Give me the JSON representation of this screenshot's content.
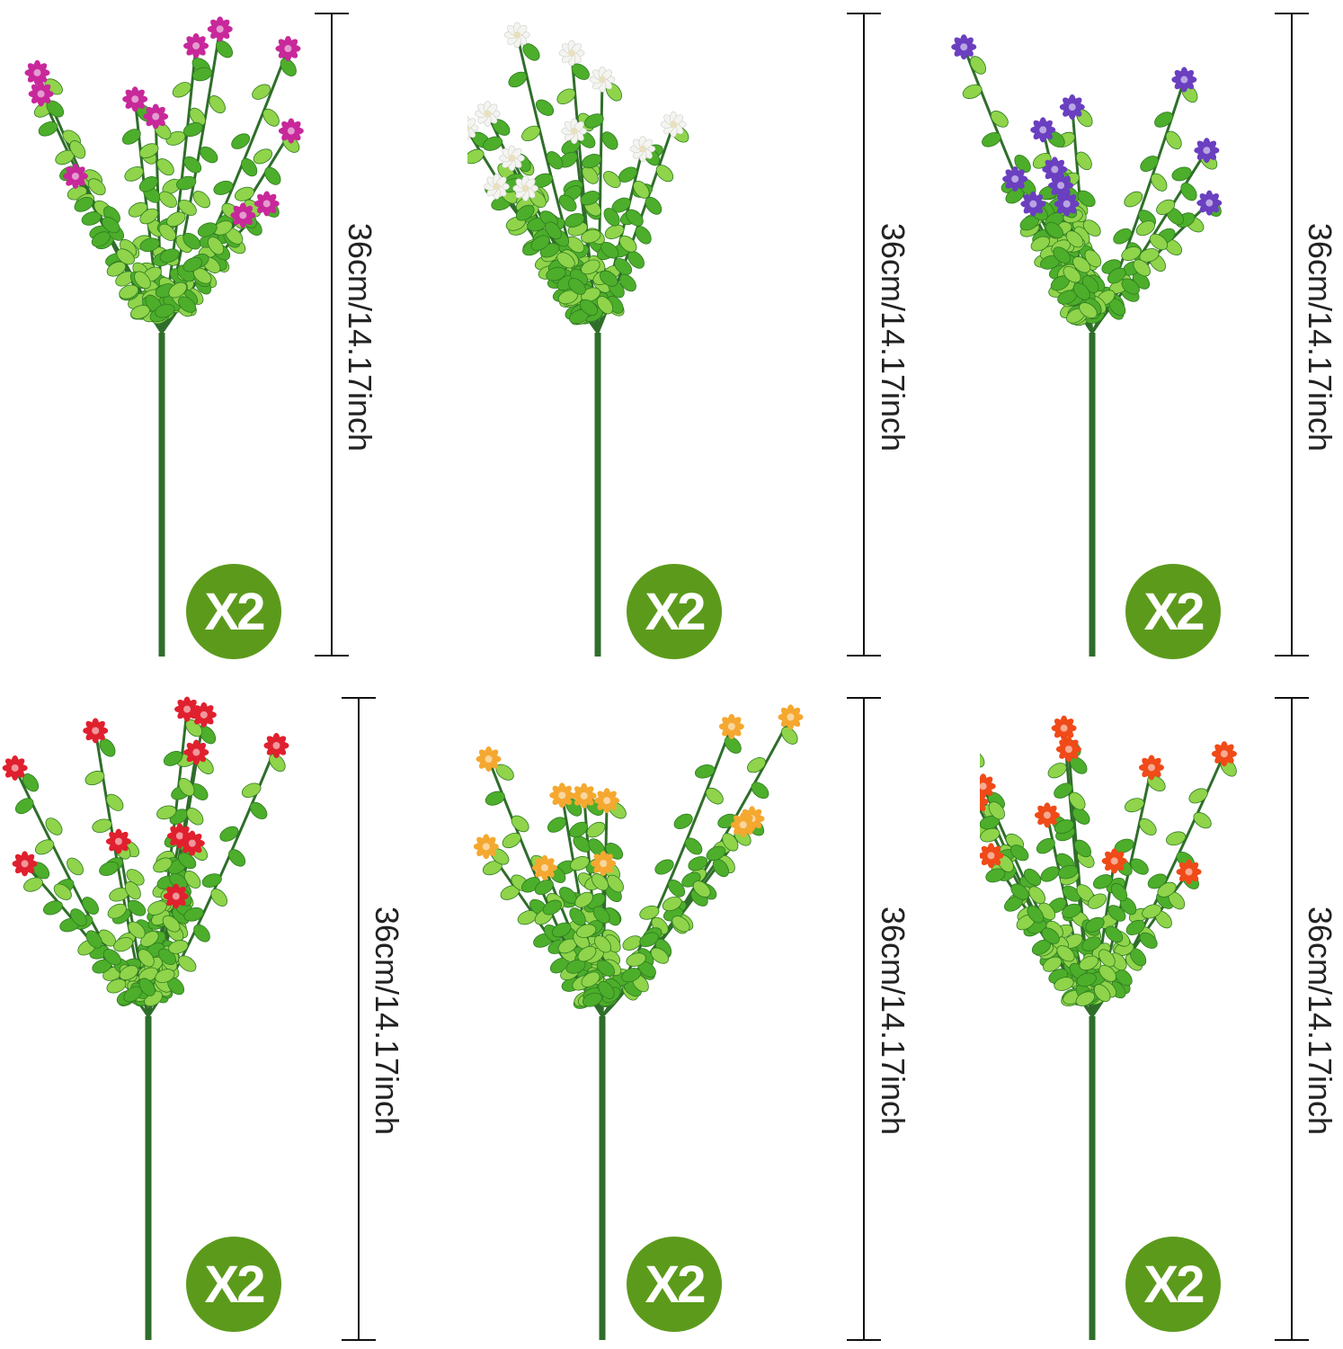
{
  "products": [
    {
      "flower_color": "#c8289a",
      "height_label": "36cm/14.17inch",
      "quantity_badge": "X2"
    },
    {
      "flower_color": "#f4f4f0",
      "height_label": "36cm/14.17inch",
      "quantity_badge": "X2"
    },
    {
      "flower_color": "#6a3fc0",
      "height_label": "36cm/14.17inch",
      "quantity_badge": "X2"
    },
    {
      "flower_color": "#e0202e",
      "height_label": "36cm/14.17inch",
      "quantity_badge": "X2"
    },
    {
      "flower_color": "#f5a830",
      "height_label": "36cm/14.17inch",
      "quantity_badge": "X2"
    },
    {
      "flower_color": "#f04a18",
      "height_label": "36cm/14.17inch",
      "quantity_badge": "X2"
    }
  ],
  "colors": {
    "badge": "#5c9a1c",
    "leaf": "#4cae2a",
    "leaf_light": "#8fd44a",
    "stem": "#2f6e2a"
  }
}
